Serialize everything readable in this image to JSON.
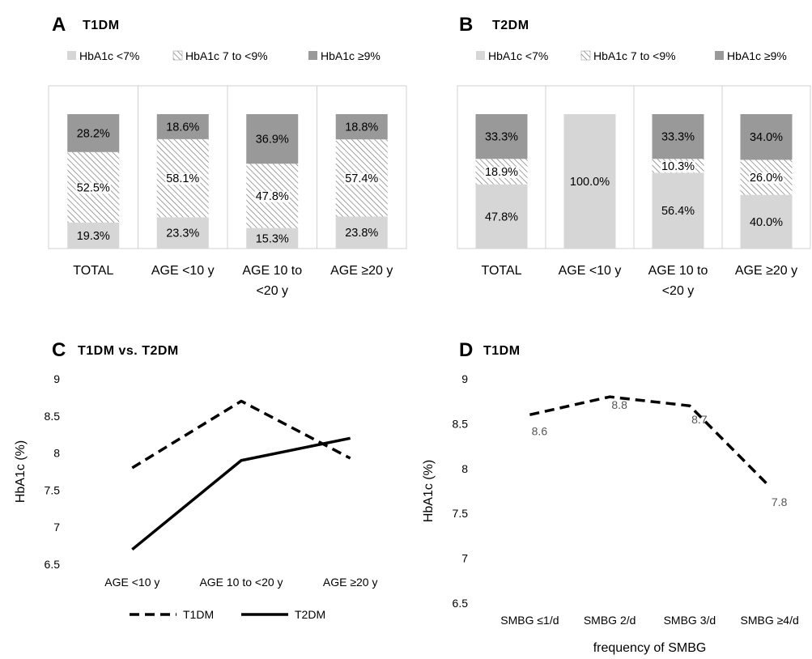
{
  "chart_data": [
    {
      "panel": "A",
      "title": "T1DM",
      "type": "bar",
      "stacked": true,
      "categories": [
        "TOTAL",
        "AGE <10 y",
        "AGE 10 to <20 y",
        "AGE ≥20 y"
      ],
      "series": [
        {
          "name": "HbA1c <7%",
          "values": [
            19.3,
            23.3,
            15.3,
            23.8
          ],
          "labels": [
            "19.3%",
            "23.3%",
            "15.3%",
            "23.8%"
          ],
          "color": "#d6d6d6",
          "pattern": "none"
        },
        {
          "name": "HbA1c 7 to <9%",
          "values": [
            52.5,
            58.1,
            47.8,
            57.4
          ],
          "labels": [
            "52.5%",
            "58.1%",
            "47.8%",
            "57.4%"
          ],
          "color": "#ffffff",
          "pattern": "hatch"
        },
        {
          "name": "HbA1c ≥9%",
          "values": [
            28.2,
            18.6,
            36.9,
            18.8
          ],
          "labels": [
            "28.2%",
            "18.6%",
            "36.9%",
            "18.8%"
          ],
          "color": "#999999",
          "pattern": "none"
        }
      ],
      "ylim": [
        0,
        100
      ],
      "legend": "top"
    },
    {
      "panel": "B",
      "title": "T2DM",
      "type": "bar",
      "stacked": true,
      "categories": [
        "TOTAL",
        "AGE <10 y",
        "AGE 10 to <20 y",
        "AGE ≥20 y"
      ],
      "series": [
        {
          "name": "HbA1c <7%",
          "values": [
            47.8,
            100.0,
            56.4,
            40.0
          ],
          "labels": [
            "47.8%",
            "100.0%",
            "56.4%",
            "40.0%"
          ],
          "color": "#d6d6d6",
          "pattern": "none"
        },
        {
          "name": "HbA1c 7 to <9%",
          "values": [
            18.9,
            0,
            10.3,
            26.0
          ],
          "labels": [
            "18.9%",
            "",
            "10.3%",
            "26.0%"
          ],
          "color": "#ffffff",
          "pattern": "hatch"
        },
        {
          "name": "HbA1c ≥9%",
          "values": [
            33.3,
            0,
            33.3,
            34.0
          ],
          "labels": [
            "33.3%",
            "",
            "33.3%",
            "34.0%"
          ],
          "color": "#999999",
          "pattern": "none"
        }
      ],
      "ylim": [
        0,
        100
      ],
      "legend": "top"
    },
    {
      "panel": "C",
      "title": "T1DM vs. T2DM",
      "type": "line",
      "categories": [
        "AGE <10 y",
        "AGE 10 to <20 y",
        "AGE ≥20 y"
      ],
      "series": [
        {
          "name": "T1DM",
          "values": [
            7.8,
            8.7,
            7.93
          ],
          "style": "dashed"
        },
        {
          "name": "T2DM",
          "values": [
            6.7,
            7.9,
            8.2
          ],
          "style": "solid"
        }
      ],
      "ylabel": "HbA1c (%)",
      "ylim": [
        6.5,
        9
      ],
      "yticks": [
        "6.5",
        "7",
        "7.5",
        "8",
        "8.5",
        "9"
      ],
      "grid": false,
      "legend": "bottom"
    },
    {
      "panel": "D",
      "title": "T1DM",
      "type": "line",
      "categories": [
        "SMBG ≤1/d",
        "SMBG 2/d",
        "SMBG 3/d",
        "SMBG ≥4/d"
      ],
      "series": [
        {
          "values": [
            8.6,
            8.8,
            8.7,
            7.8
          ],
          "labels": [
            "8.6",
            "8.8",
            "8.7",
            "7.8"
          ],
          "style": "dashed"
        }
      ],
      "xlabel": "frequency of SMBG",
      "ylabel": "HbA1c (%)",
      "ylim": [
        6.5,
        9
      ],
      "yticks": [
        "6.5",
        "7",
        "7.5",
        "8",
        "8.5",
        "9"
      ],
      "grid": false
    }
  ]
}
